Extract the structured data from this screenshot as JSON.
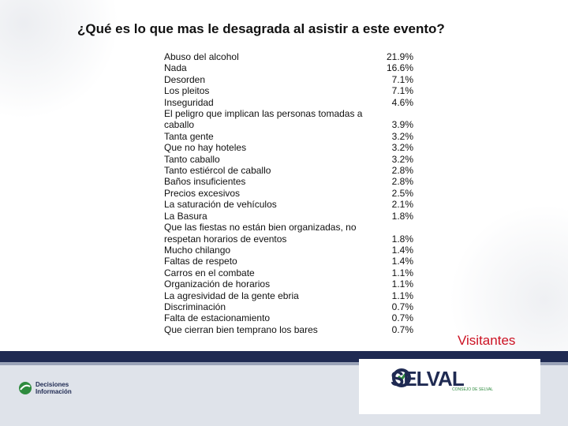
{
  "title": "¿Qué es lo que mas le desagrada al asistir a este evento?",
  "items": [
    {
      "label": "Abuso del alcohol",
      "value": "21.9%"
    },
    {
      "label": "Nada",
      "value": "16.6%"
    },
    {
      "label": "Desorden",
      "value": "7.1%"
    },
    {
      "label": "Los pleitos",
      "value": "7.1%"
    },
    {
      "label": "Inseguridad",
      "value": "4.6%"
    },
    {
      "label": "El peligro que implican las personas tomadas a caballo",
      "value": "3.9%"
    },
    {
      "label": "Tanta gente",
      "value": "3.2%"
    },
    {
      "label": "Que no hay hoteles",
      "value": "3.2%"
    },
    {
      "label": "Tanto caballo",
      "value": "3.2%"
    },
    {
      "label": "Tanto estiércol de caballo",
      "value": "2.8%"
    },
    {
      "label": "Baños insuficientes",
      "value": "2.8%"
    },
    {
      "label": "Precios excesivos",
      "value": "2.5%"
    },
    {
      "label": "La saturación de vehículos",
      "value": "2.1%"
    },
    {
      "label": "La Basura",
      "value": "1.8%"
    },
    {
      "label": "Que las fiestas no están bien organizadas, no respetan horarios de eventos",
      "value": "1.8%"
    },
    {
      "label": "Mucho chilango",
      "value": "1.4%"
    },
    {
      "label": "Faltas de respeto",
      "value": "1.4%"
    },
    {
      "label": "Carros en el combate",
      "value": "1.1%"
    },
    {
      "label": "Organización de horarios",
      "value": "1.1%"
    },
    {
      "label": "La agresividad de la gente ebria",
      "value": "1.1%"
    },
    {
      "label": "Discriminación",
      "value": "0.7%"
    },
    {
      "label": "Falta de estacionamiento",
      "value": "0.7%"
    },
    {
      "label": "Que cierran bien temprano los bares",
      "value": "0.7%"
    }
  ],
  "segment_label": "Visitantes",
  "footer": {
    "left_logo_text_line1": "Decisiones",
    "left_logo_text_line2": "Información",
    "right_logo_brand": "SELVAL",
    "right_logo_sub": "CONSEJO DE SELVAL"
  },
  "colors": {
    "accent_red": "#cc1122",
    "navy": "#1f2a52",
    "green": "#2e8b3e"
  }
}
